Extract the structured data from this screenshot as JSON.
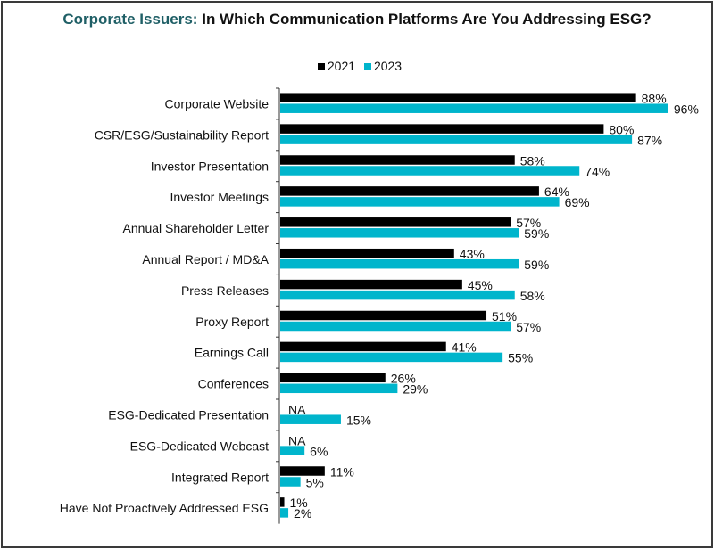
{
  "chart_data": {
    "type": "bar",
    "orientation": "horizontal",
    "title_highlight": "Corporate Issuers:",
    "title_rest": "In Which Communication Platforms Are You Addressing ESG?",
    "categories": [
      "Corporate Website",
      "CSR/ESG/Sustainability Report",
      "Investor Presentation",
      "Investor Meetings",
      "Annual Shareholder Letter",
      "Annual Report / MD&A",
      "Press Releases",
      "Proxy Report",
      "Earnings Call",
      "Conferences",
      "ESG-Dedicated Presentation",
      "ESG-Dedicated Webcast",
      "Integrated Report",
      "Have Not Proactively Addressed ESG"
    ],
    "series": [
      {
        "name": "2021",
        "color": "#000000",
        "values": [
          88,
          80,
          58,
          64,
          57,
          43,
          45,
          51,
          41,
          26,
          null,
          null,
          11,
          1
        ]
      },
      {
        "name": "2023",
        "color": "#00b5cc",
        "values": [
          96,
          87,
          74,
          69,
          59,
          59,
          58,
          57,
          55,
          29,
          15,
          6,
          5,
          2
        ]
      }
    ],
    "missing_label": "NA",
    "value_suffix": "%",
    "legend": "top",
    "grid": false,
    "title_color": "#1f5f66"
  }
}
